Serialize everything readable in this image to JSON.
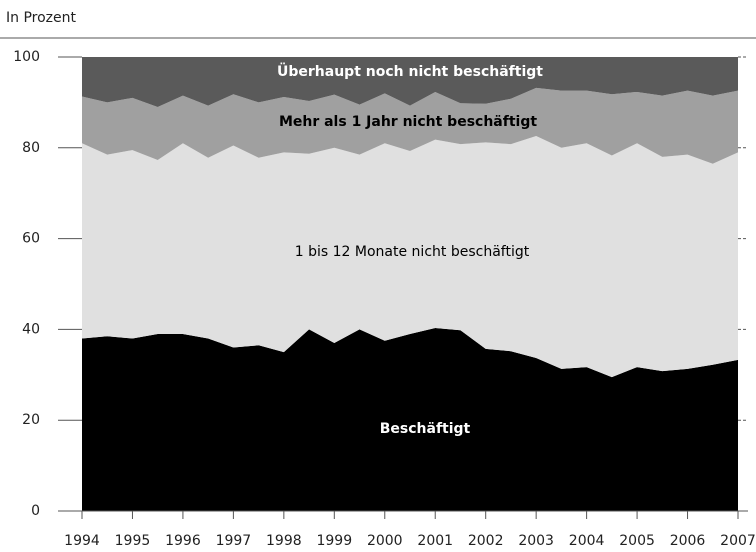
{
  "chart_data": {
    "type": "stacked_area",
    "y_label": "In Prozent",
    "x": [
      1994,
      1994.5,
      1995,
      1995.5,
      1996,
      1996.5,
      1997,
      1997.5,
      1998,
      1998.5,
      1999,
      1999.5,
      2000,
      2000.5,
      2001,
      2001.5,
      2002,
      2002.5,
      2003,
      2003.5,
      2004,
      2004.5,
      2005,
      2005.5,
      2006,
      2006.5,
      2007
    ],
    "xlim": [
      1994,
      2007
    ],
    "xticks": [
      1994,
      1995,
      1996,
      1997,
      1998,
      1999,
      2000,
      2001,
      2002,
      2003,
      2004,
      2005,
      2006,
      2007
    ],
    "ylim": [
      0,
      100
    ],
    "yticks": [
      0,
      20,
      40,
      60,
      80,
      100
    ],
    "series": [
      {
        "name": "Beschäftigt",
        "color": "#000000",
        "values": [
          38,
          38.5,
          38,
          39,
          39,
          38,
          36,
          36.5,
          35,
          40,
          37,
          40,
          37.5,
          39,
          40.3,
          39.8,
          35.7,
          35.2,
          33.7,
          31.3,
          31.7,
          29.5,
          31.7,
          30.8,
          31.3,
          32.2,
          33.3
        ]
      },
      {
        "name": "1 bis 12 Monate nicht beschäftigt",
        "color": "#e0e0e0",
        "values": [
          43,
          40,
          41.5,
          38.3,
          42,
          39.8,
          44.5,
          41.3,
          44,
          38.7,
          43,
          38.5,
          43.5,
          40.3,
          41.5,
          41,
          45.5,
          45.6,
          48.9,
          48.7,
          49.3,
          48.8,
          49.3,
          47.2,
          47.2,
          44.3,
          45.7
        ]
      },
      {
        "name": "Mehr als 1 Jahr nicht beschäftigt",
        "color": "#a0a0a0",
        "values": [
          10.3,
          11.5,
          11.5,
          11.7,
          10.5,
          11.5,
          11.3,
          12.2,
          12.2,
          11.6,
          11.7,
          11,
          11,
          10,
          10.5,
          9,
          8.5,
          10,
          10.6,
          12.6,
          11.6,
          13.5,
          11.3,
          13.5,
          14.1,
          15,
          13.6
        ]
      },
      {
        "name": "Überhaupt noch nicht beschäftigt",
        "color": "#5a5a5a",
        "values": [
          8.7,
          10,
          9,
          11,
          8.5,
          10.7,
          8.2,
          10,
          8.8,
          9.7,
          8.3,
          10.5,
          8,
          10.7,
          7.7,
          10.2,
          10.3,
          9.2,
          6.8,
          7.4,
          7.4,
          8.2,
          7.7,
          8.5,
          7.4,
          8.5,
          7.4
        ]
      }
    ]
  }
}
